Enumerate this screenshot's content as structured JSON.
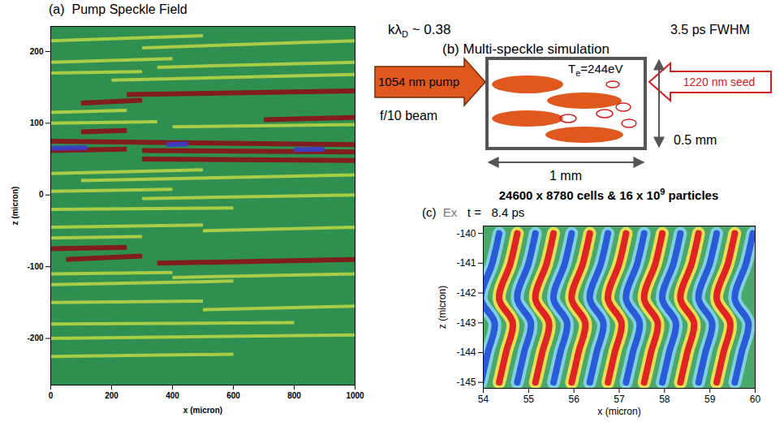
{
  "chart_data": [
    {
      "type": "segments",
      "panel": "(a)",
      "title": "Pump Speckle Field",
      "x_label": "x (micron)",
      "y_label": "z (micron)",
      "xlim": [
        0,
        1000
      ],
      "xticks": [
        0,
        200,
        400,
        600,
        800,
        1000
      ],
      "ylim": [
        -265,
        235
      ],
      "yticks": [
        -200,
        -100,
        0,
        100,
        200
      ],
      "series": [
        {
          "color": "#b4d444",
          "segments": [
            [
              0,
              215,
              500,
              222
            ],
            [
              300,
              205,
              1000,
              215
            ],
            [
              0,
              185,
              400,
              190
            ],
            [
              350,
              178,
              1000,
              185
            ],
            [
              0,
              170,
              300,
              172
            ],
            [
              200,
              160,
              1000,
              168
            ],
            [
              0,
              115,
              250,
              118
            ],
            [
              0,
              100,
              350,
              102
            ],
            [
              400,
              95,
              1000,
              98
            ],
            [
              0,
              30,
              500,
              35
            ],
            [
              100,
              20,
              1000,
              28
            ],
            [
              0,
              5,
              400,
              8
            ],
            [
              300,
              -5,
              1000,
              0
            ],
            [
              0,
              -20,
              600,
              -18
            ],
            [
              0,
              -45,
              500,
              -42
            ],
            [
              500,
              -50,
              1000,
              -45
            ],
            [
              0,
              -60,
              300,
              -58
            ],
            [
              0,
              -110,
              400,
              -108
            ],
            [
              400,
              -115,
              1000,
              -110
            ],
            [
              0,
              -125,
              600,
              -120
            ],
            [
              0,
              -150,
              500,
              -148
            ],
            [
              500,
              -160,
              1000,
              -155
            ],
            [
              0,
              -180,
              800,
              -178
            ],
            [
              0,
              -200,
              1000,
              -195
            ],
            [
              0,
              -225,
              600,
              -222
            ]
          ]
        },
        {
          "color": "#8b0f1a",
          "segments": [
            [
              100,
              128,
              300,
              132
            ],
            [
              250,
              140,
              1000,
              145
            ],
            [
              700,
              105,
              1000,
              108
            ],
            [
              100,
              88,
              250,
              90
            ],
            [
              0,
              75,
              1000,
              70
            ],
            [
              0,
              62,
              250,
              64
            ],
            [
              300,
              62,
              1000,
              60
            ],
            [
              300,
              50,
              1000,
              48
            ],
            [
              0,
              -75,
              250,
              -73
            ],
            [
              350,
              -95,
              1000,
              -90
            ],
            [
              50,
              -90,
              300,
              -85
            ]
          ]
        },
        {
          "color": "#3c3cc8",
          "segments": [
            [
              0,
              65,
              120,
              66
            ],
            [
              380,
              70,
              450,
              71
            ],
            [
              800,
              63,
              900,
              64
            ]
          ]
        }
      ]
    },
    {
      "type": "line",
      "panel": "(c)",
      "title": "Ex",
      "subtitle": "t =   8.4 ps",
      "x_label": "x (micron)",
      "y_label": "z (micron)",
      "xlim": [
        54,
        60
      ],
      "xticks": [
        54,
        55,
        56,
        57,
        58,
        59,
        60
      ],
      "ylim": [
        -145.2,
        -139.75
      ],
      "yticks": [
        -145,
        -144,
        -143,
        -142,
        -141,
        -140
      ],
      "y": [
        -140,
        -141,
        -142.2,
        -143,
        -144,
        -145
      ],
      "series": [
        {
          "color": "#2a5ad8",
          "lines": [
            [
              54.35,
              54.2,
              53.95,
              54.25,
              54.1,
              53.95
            ],
            [
              55.15,
              55.0,
              54.75,
              55.05,
              54.9,
              54.75
            ],
            [
              55.95,
              55.8,
              55.55,
              55.85,
              55.7,
              55.55
            ],
            [
              56.75,
              56.6,
              56.35,
              56.65,
              56.5,
              56.35
            ],
            [
              57.55,
              57.4,
              57.15,
              57.45,
              57.3,
              57.15
            ],
            [
              58.35,
              58.2,
              57.95,
              58.25,
              58.1,
              57.95
            ],
            [
              59.15,
              59.0,
              58.75,
              59.05,
              58.9,
              58.75
            ],
            [
              59.95,
              59.8,
              59.55,
              59.85,
              59.7,
              59.55
            ]
          ]
        },
        {
          "color": "#e02424",
          "lines": [
            [
              54.75,
              54.6,
              54.35,
              54.65,
              54.5,
              54.35
            ],
            [
              55.55,
              55.4,
              55.15,
              55.45,
              55.3,
              55.15
            ],
            [
              56.35,
              56.2,
              55.95,
              56.25,
              56.1,
              55.95
            ],
            [
              57.15,
              57.0,
              56.75,
              57.05,
              56.9,
              56.75
            ],
            [
              57.95,
              57.8,
              57.55,
              57.85,
              57.7,
              57.55
            ],
            [
              58.75,
              58.6,
              58.35,
              58.65,
              58.5,
              58.35
            ],
            [
              59.55,
              59.4,
              59.15,
              59.45,
              59.3,
              59.15
            ]
          ]
        }
      ]
    }
  ],
  "diagram": {
    "panel": "(b)",
    "title": "Multi-speckle simulation",
    "k_lambda": {
      "text": "kλ",
      "sub": "D",
      "after": " ~ 0.38"
    },
    "pump": "1054 nm pump",
    "beam": "f/10 beam",
    "temperature": {
      "text": "T",
      "sub": "e",
      "after": "=244eV"
    },
    "duration": "3.5 ps FWHM",
    "seed": "1220 nm seed",
    "height": "0.5 mm",
    "length": "1 mm",
    "grid": {
      "text": "24600 x 8780 cells & 16 x 10",
      "sup": "9",
      "after": " particles"
    }
  }
}
